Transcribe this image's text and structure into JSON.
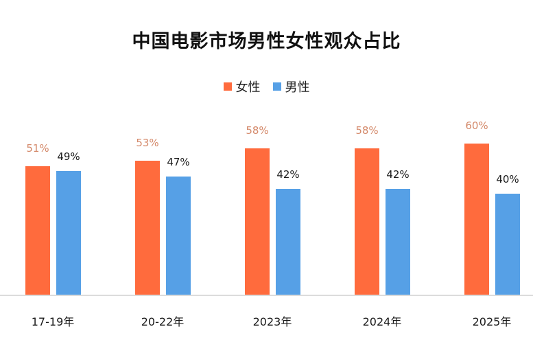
{
  "chart_data": {
    "type": "bar",
    "title": "中国电影市场男性女性观众占比",
    "categories": [
      "17-19年",
      "20-22年",
      "2023年",
      "2024年",
      "2025年"
    ],
    "series": [
      {
        "name": "女性",
        "color": "#ff6b3d",
        "values": [
          51,
          53,
          58,
          58,
          60
        ],
        "labels": [
          "51%",
          "53%",
          "58%",
          "58%",
          "60%"
        ]
      },
      {
        "name": "男性",
        "color": "#56a0e6",
        "values": [
          49,
          47,
          42,
          42,
          40
        ],
        "labels": [
          "49%",
          "47%",
          "42%",
          "42%",
          "40%"
        ]
      }
    ],
    "xlabel": "",
    "ylabel": "",
    "ylim": [
      0,
      100
    ],
    "grid": false,
    "legend_position": "top"
  },
  "legend": {
    "female": "女性",
    "male": "男性"
  }
}
